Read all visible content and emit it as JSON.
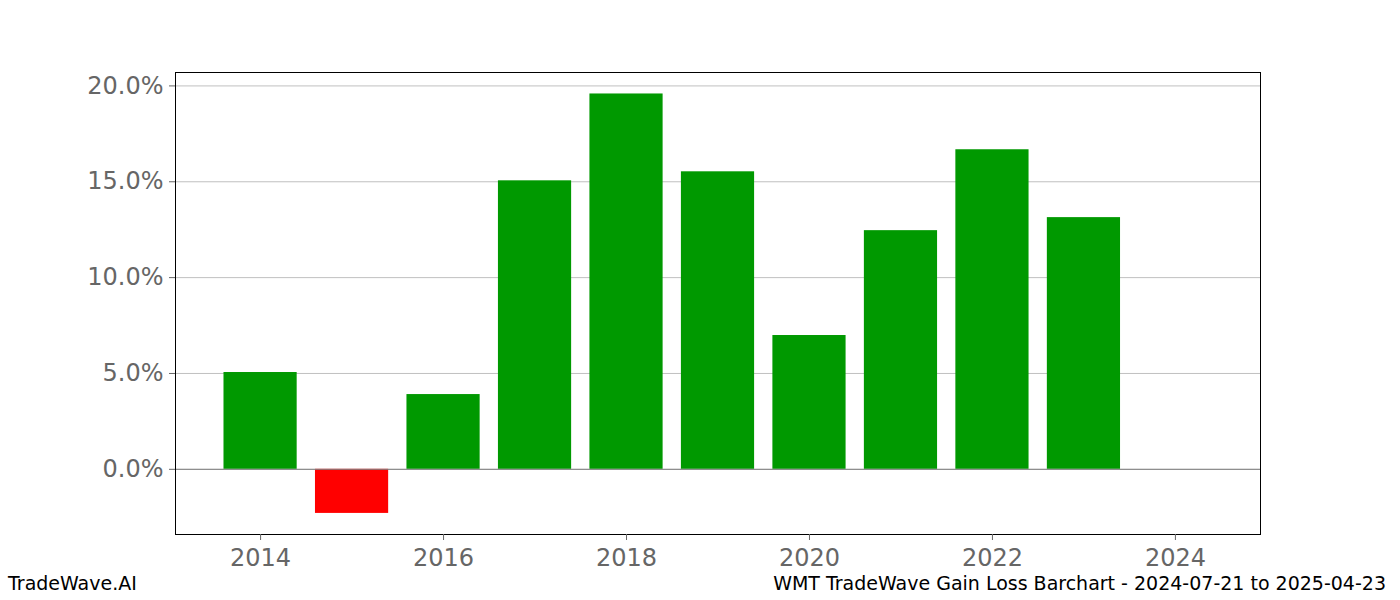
{
  "chart_data": {
    "type": "bar",
    "categories": [
      2014,
      2015,
      2016,
      2017,
      2018,
      2019,
      2020,
      2021,
      2022,
      2023
    ],
    "values": [
      5.05,
      -2.3,
      3.9,
      15.05,
      19.58,
      15.52,
      6.98,
      12.45,
      16.67,
      13.13
    ],
    "colors": [
      "#009900",
      "#ff0000",
      "#009900",
      "#009900",
      "#009900",
      "#009900",
      "#009900",
      "#009900",
      "#009900",
      "#009900"
    ],
    "xlim": [
      2013.07,
      2024.93
    ],
    "xticks": [
      2014,
      2016,
      2018,
      2020,
      2022,
      2024
    ],
    "ylim": [
      -3.4,
      20.7
    ],
    "yticks": [
      {
        "value": 0,
        "label": "0.0%"
      },
      {
        "value": 5,
        "label": "5.0%"
      },
      {
        "value": 10,
        "label": "10.0%"
      },
      {
        "value": 15,
        "label": "15.0%"
      },
      {
        "value": 20,
        "label": "20.0%"
      }
    ],
    "grid": true,
    "annotations": [
      "TradeWave.AI",
      "WMT TradeWave Gain Loss Barchart - 2024-07-21 to 2025-04-23"
    ]
  }
}
